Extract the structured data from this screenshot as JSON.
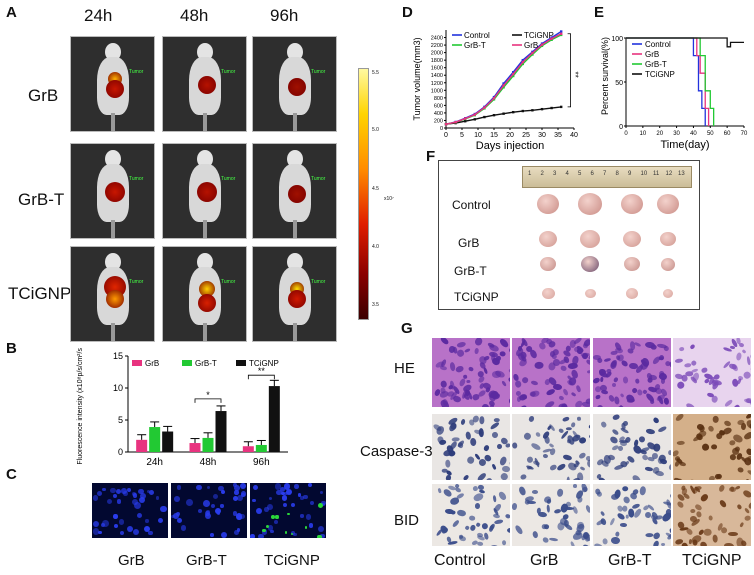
{
  "panels": {
    "A": "A",
    "B": "B",
    "C": "C",
    "D": "D",
    "E": "E",
    "F": "F",
    "G": "G"
  },
  "panelA": {
    "timepoints": [
      "24h",
      "48h",
      "96h"
    ],
    "groups": [
      "GrB",
      "GrB-T",
      "TCiGNP"
    ],
    "tumor_tag": "Tumor",
    "colorbar": {
      "ticks": [
        "5.5",
        "5.0",
        "4.5",
        "4.0",
        "3.5"
      ],
      "unit": "x10⁷"
    }
  },
  "panelC": {
    "labels": [
      "GrB",
      "GrB-T",
      "TCiGNP"
    ]
  },
  "panelG": {
    "rows": [
      "HE",
      "Caspase-3",
      "BID"
    ],
    "cols": [
      "Control",
      "GrB",
      "GrB-T",
      "TCiGNP"
    ]
  },
  "panelF": {
    "groups": [
      "Control",
      "GrB",
      "GrB-T",
      "TCiGNP"
    ],
    "ruler_numbers": [
      "1",
      "2",
      "3",
      "4",
      "5",
      "6",
      "7",
      "8",
      "9",
      "10",
      "11",
      "12",
      "13"
    ]
  },
  "chart_data": [
    {
      "id": "B",
      "type": "bar",
      "ylabel": "Fluorescence intensity (x10⁸p/s/cm²/sr)",
      "categories": [
        "24h",
        "48h",
        "96h"
      ],
      "ylim": [
        0,
        15
      ],
      "yticks": [
        "0",
        "5",
        "10",
        "15"
      ],
      "series": [
        {
          "name": "GrB",
          "color": "#e8337f",
          "values": [
            1.9,
            1.4,
            0.9
          ],
          "err": [
            0.8,
            0.7,
            0.7
          ]
        },
        {
          "name": "GrB-T",
          "color": "#22c933",
          "values": [
            3.9,
            2.2,
            1.1
          ],
          "err": [
            0.8,
            0.8,
            0.7
          ]
        },
        {
          "name": "TCiGNP",
          "color": "#111111",
          "values": [
            3.2,
            6.4,
            10.3
          ],
          "err": [
            0.8,
            0.8,
            0.9
          ]
        }
      ],
      "significance": [
        {
          "category": "48h",
          "label": "*"
        },
        {
          "category": "96h",
          "label": "**"
        }
      ]
    },
    {
      "id": "D",
      "type": "line",
      "xlabel": "Days injection",
      "ylabel": "Tumor volume(mm3)",
      "xlim": [
        0,
        40
      ],
      "ylim": [
        0,
        2600
      ],
      "xticks": [
        "0",
        "5",
        "10",
        "15",
        "20",
        "25",
        "30",
        "35",
        "40"
      ],
      "yticks": [
        "0",
        "200",
        "400",
        "600",
        "800",
        "1000",
        "1200",
        "1400",
        "1600",
        "1800",
        "2000",
        "2200",
        "2400"
      ],
      "x": [
        0,
        3,
        6,
        9,
        12,
        15,
        18,
        21,
        24,
        27,
        30,
        33,
        36
      ],
      "series": [
        {
          "name": "Control",
          "color": "#2233dd",
          "values": [
            100,
            160,
            260,
            370,
            560,
            820,
            1180,
            1480,
            1800,
            2020,
            2240,
            2400,
            2560
          ]
        },
        {
          "name": "TCiGNP",
          "color": "#111111",
          "values": [
            100,
            130,
            180,
            230,
            290,
            340,
            380,
            420,
            450,
            470,
            500,
            530,
            560
          ]
        },
        {
          "name": "GrB-T",
          "color": "#22c933",
          "values": [
            100,
            150,
            240,
            340,
            520,
            760,
            1080,
            1380,
            1700,
            1950,
            2180,
            2340,
            2470
          ]
        },
        {
          "name": "GrB",
          "color": "#e8337f",
          "values": [
            100,
            155,
            250,
            355,
            540,
            790,
            1130,
            1430,
            1750,
            1990,
            2210,
            2370,
            2500
          ]
        }
      ],
      "significance": "**"
    },
    {
      "id": "E",
      "type": "line",
      "xlabel": "Time(day)",
      "ylabel": "Percent survival(%)",
      "xlim": [
        0,
        70
      ],
      "ylim": [
        0,
        100
      ],
      "xticks": [
        "0",
        "10",
        "20",
        "30",
        "40",
        "50",
        "60",
        "70"
      ],
      "yticks": [
        "0",
        "50",
        "100"
      ],
      "series": [
        {
          "name": "Control",
          "color": "#2233dd",
          "x": [
            0,
            40,
            40,
            43,
            43,
            45,
            45,
            47,
            47
          ],
          "values": [
            100,
            100,
            80,
            80,
            40,
            40,
            20,
            20,
            0
          ]
        },
        {
          "name": "GrB",
          "color": "#e8337f",
          "x": [
            0,
            42,
            42,
            44,
            44,
            47,
            47,
            49,
            49
          ],
          "values": [
            100,
            100,
            80,
            80,
            60,
            60,
            20,
            20,
            0
          ]
        },
        {
          "name": "GrB-T",
          "color": "#22c933",
          "x": [
            0,
            44,
            44,
            47,
            47,
            50,
            50,
            52,
            52
          ],
          "values": [
            100,
            100,
            80,
            80,
            40,
            40,
            20,
            20,
            0
          ]
        },
        {
          "name": "TCiGNP",
          "color": "#111111",
          "x": [
            0,
            60,
            60,
            62,
            62,
            70
          ],
          "values": [
            100,
            100,
            90,
            90,
            95,
            95
          ]
        }
      ]
    }
  ]
}
